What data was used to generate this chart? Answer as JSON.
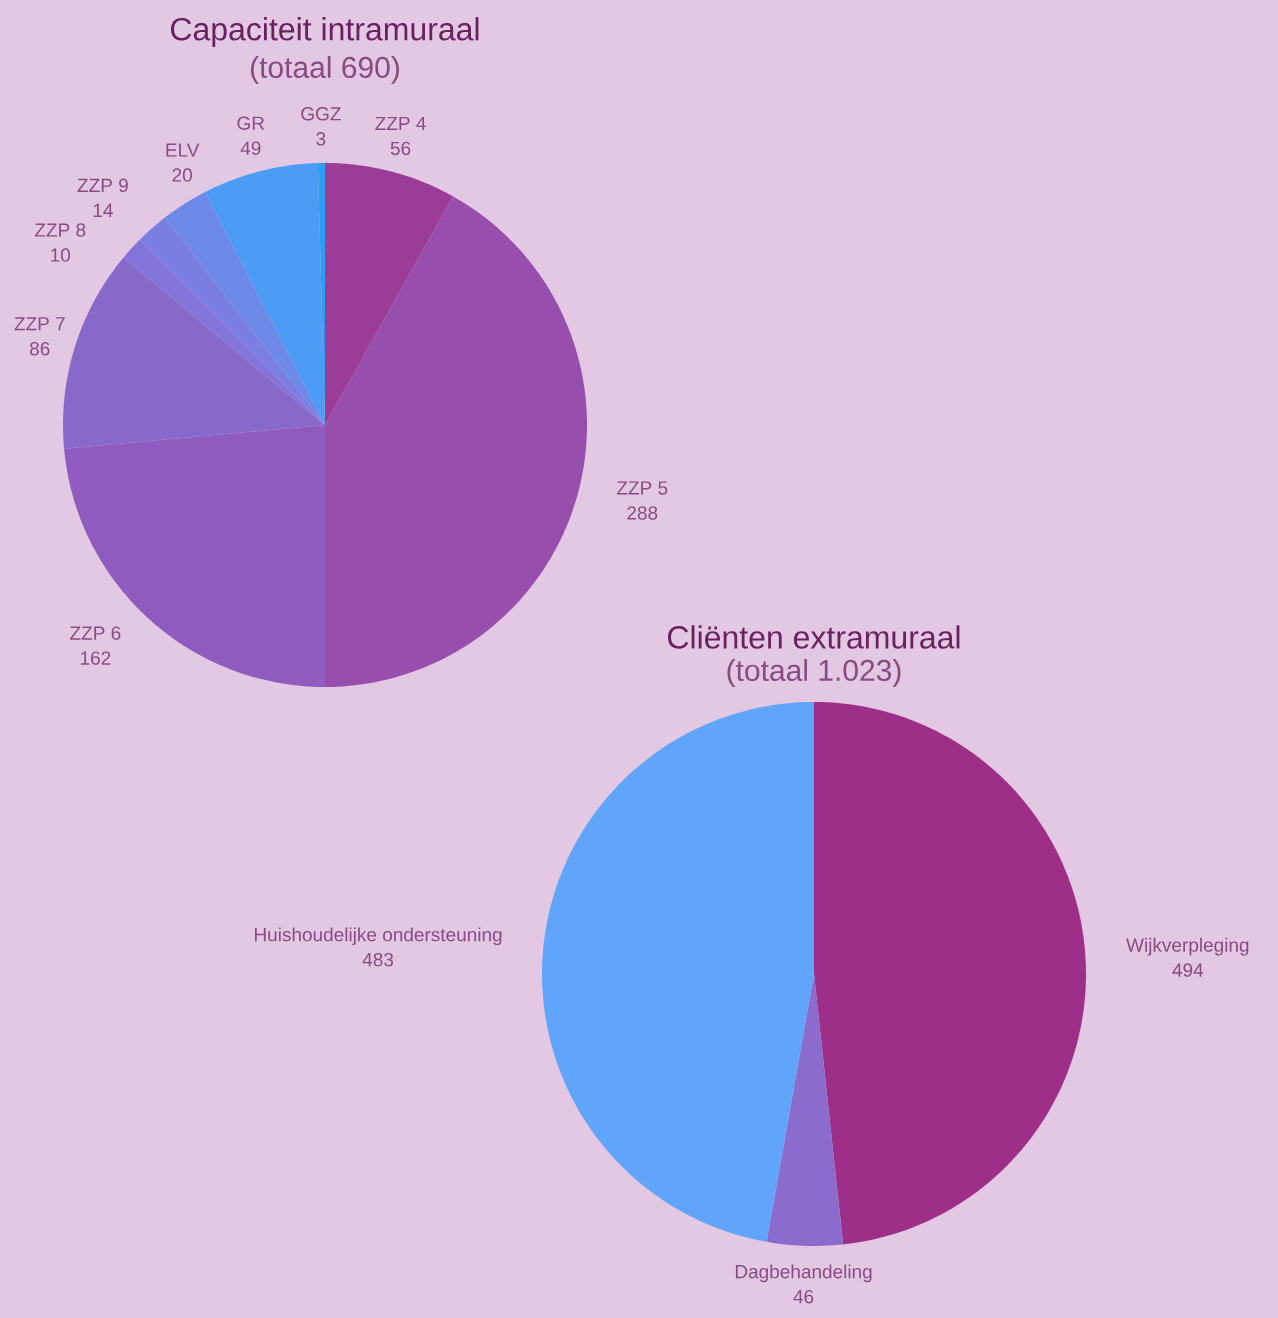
{
  "chart_data": [
    {
      "type": "pie",
      "title": "Capaciteit intramuraal",
      "subtitle": "(totaal 690)",
      "categories": [
        "ZZP 4",
        "ZZP 5",
        "ZZP 6",
        "ZZP 7",
        "ZZP 8",
        "ZZP 9",
        "ELV",
        "GR",
        "GGZ"
      ],
      "values": [
        56,
        288,
        162,
        86,
        10,
        14,
        20,
        49,
        3
      ],
      "colors": [
        "#9b3d98",
        "#974eac",
        "#8f5bbf",
        "#8769c9",
        "#8274d8",
        "#7a7ee2",
        "#6d8ae8",
        "#4c9cf5",
        "#2d9ef5"
      ],
      "data_labels": true
    },
    {
      "type": "pie",
      "title": "Cliënten extramuraal",
      "subtitle": "(totaal 1.023)",
      "categories": [
        "Wijkverpleging",
        "Dagbehandeling",
        "Huishoudelijke ondersteuning"
      ],
      "values": [
        494,
        46,
        483
      ],
      "colors": [
        "#9e2f88",
        "#8b6ccc",
        "#61a5fa"
      ],
      "data_labels": true
    }
  ]
}
